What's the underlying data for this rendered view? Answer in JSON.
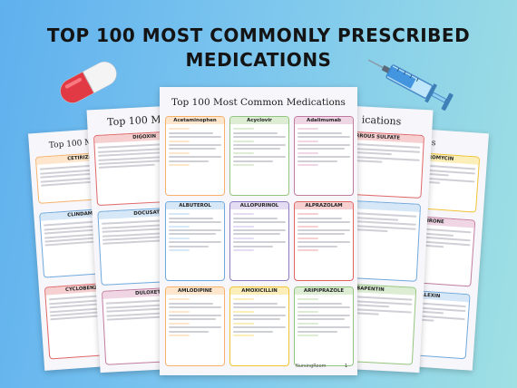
{
  "headline": {
    "line1": "TOP 100 MOST COMMONLY PRESCRIBED",
    "line2": "MEDICATIONS"
  },
  "colors": {
    "background_left": "#5fb0ee",
    "background_right": "#9fe0e3",
    "pill_red": "#e23a44",
    "pill_white": "#f4f4f4",
    "syringe_barrel": "#8fd0f2",
    "syringe_fluid": "#2c86d8"
  },
  "icons": [
    "pill-capsule-icon",
    "syringe-icon"
  ],
  "center_sheet": {
    "title": "Top 100 Most Common Medications",
    "cards": [
      {
        "name": "Acetaminophen",
        "color": "#f6b26b"
      },
      {
        "name": "Acyclovir",
        "color": "#93c47d"
      },
      {
        "name": "Adalimumab",
        "color": "#c27ba0"
      },
      {
        "name": "ALBUTEROL",
        "color": "#6fa8dc"
      },
      {
        "name": "ALLOPURINOL",
        "color": "#8e7cc3"
      },
      {
        "name": "ALPRAZOLAM",
        "color": "#e06666"
      },
      {
        "name": "AMLODIPINE",
        "color": "#f6b26b"
      },
      {
        "name": "AMOXICILLIN",
        "color": "#f1c232"
      },
      {
        "name": "ARIPIPRAZOLE",
        "color": "#93c47d"
      }
    ],
    "footer": "NursingRoom"
  },
  "back_left_sheet": {
    "title": "Top 100 M",
    "cards": [
      "DIGOXIN",
      "DOCUSATE",
      "DULOXETINE"
    ]
  },
  "far_left_sheet": {
    "title": "Top 100 M",
    "cards": [
      "CETIRIZINE",
      "CLINDAMYCIN",
      "CYCLOBENZAPRINE"
    ]
  },
  "back_right_sheet": {
    "title": "ications",
    "cards": [
      "FERROUS SULFATE",
      "GABAPENTIN"
    ]
  },
  "far_right_sheet": {
    "title": "tions",
    "cards": [
      "AZITHROMYCIN",
      "BUSPIRONE",
      "CEPHALEXIN"
    ]
  }
}
